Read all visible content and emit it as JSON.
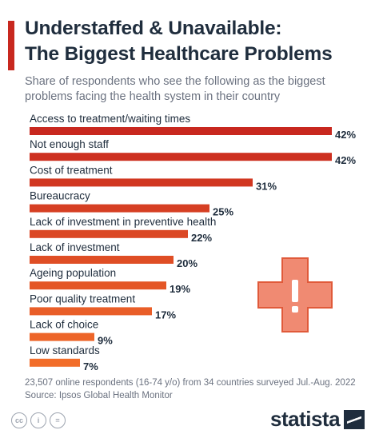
{
  "header": {
    "title_line1": "Understaffed & Unavailable:",
    "title_line2": "The Biggest Healthcare Problems",
    "subtitle_line1": "Share of respondents who see the following as the biggest",
    "subtitle_line2": "problems facing the health system in their country"
  },
  "chart_data": {
    "type": "bar",
    "orientation": "horizontal",
    "categories": [
      "Access to treatment/waiting times",
      "Not enough staff",
      "Cost of treatment",
      "Bureaucracy",
      "Lack of investment in preventive health",
      "Lack of investment",
      "Ageing population",
      "Poor quality treatment",
      "Lack of choice",
      "Low standards"
    ],
    "values": [
      42,
      42,
      31,
      25,
      22,
      20,
      19,
      17,
      9,
      7
    ],
    "value_labels": [
      "42%",
      "42%",
      "31%",
      "25%",
      "22%",
      "20%",
      "19%",
      "17%",
      "9%",
      "7%"
    ],
    "unit": "%",
    "xlim": [
      0,
      42
    ],
    "grid": false,
    "colors": {
      "start": "#c8281f",
      "end": "#f26d2a"
    }
  },
  "footer": {
    "note": "23,507 online respondents (16-74 y/o) from 34 countries surveyed Jul.-Aug. 2022",
    "source": "Source: Ipsos Global Health Monitor",
    "license_icons": [
      "cc-icon",
      "by-icon",
      "nd-icon"
    ],
    "brand": "statista"
  },
  "colors": {
    "accent": "#c8281f",
    "text": "#1f2d3d",
    "muted": "#6b7280",
    "cross": "#f08a72"
  }
}
